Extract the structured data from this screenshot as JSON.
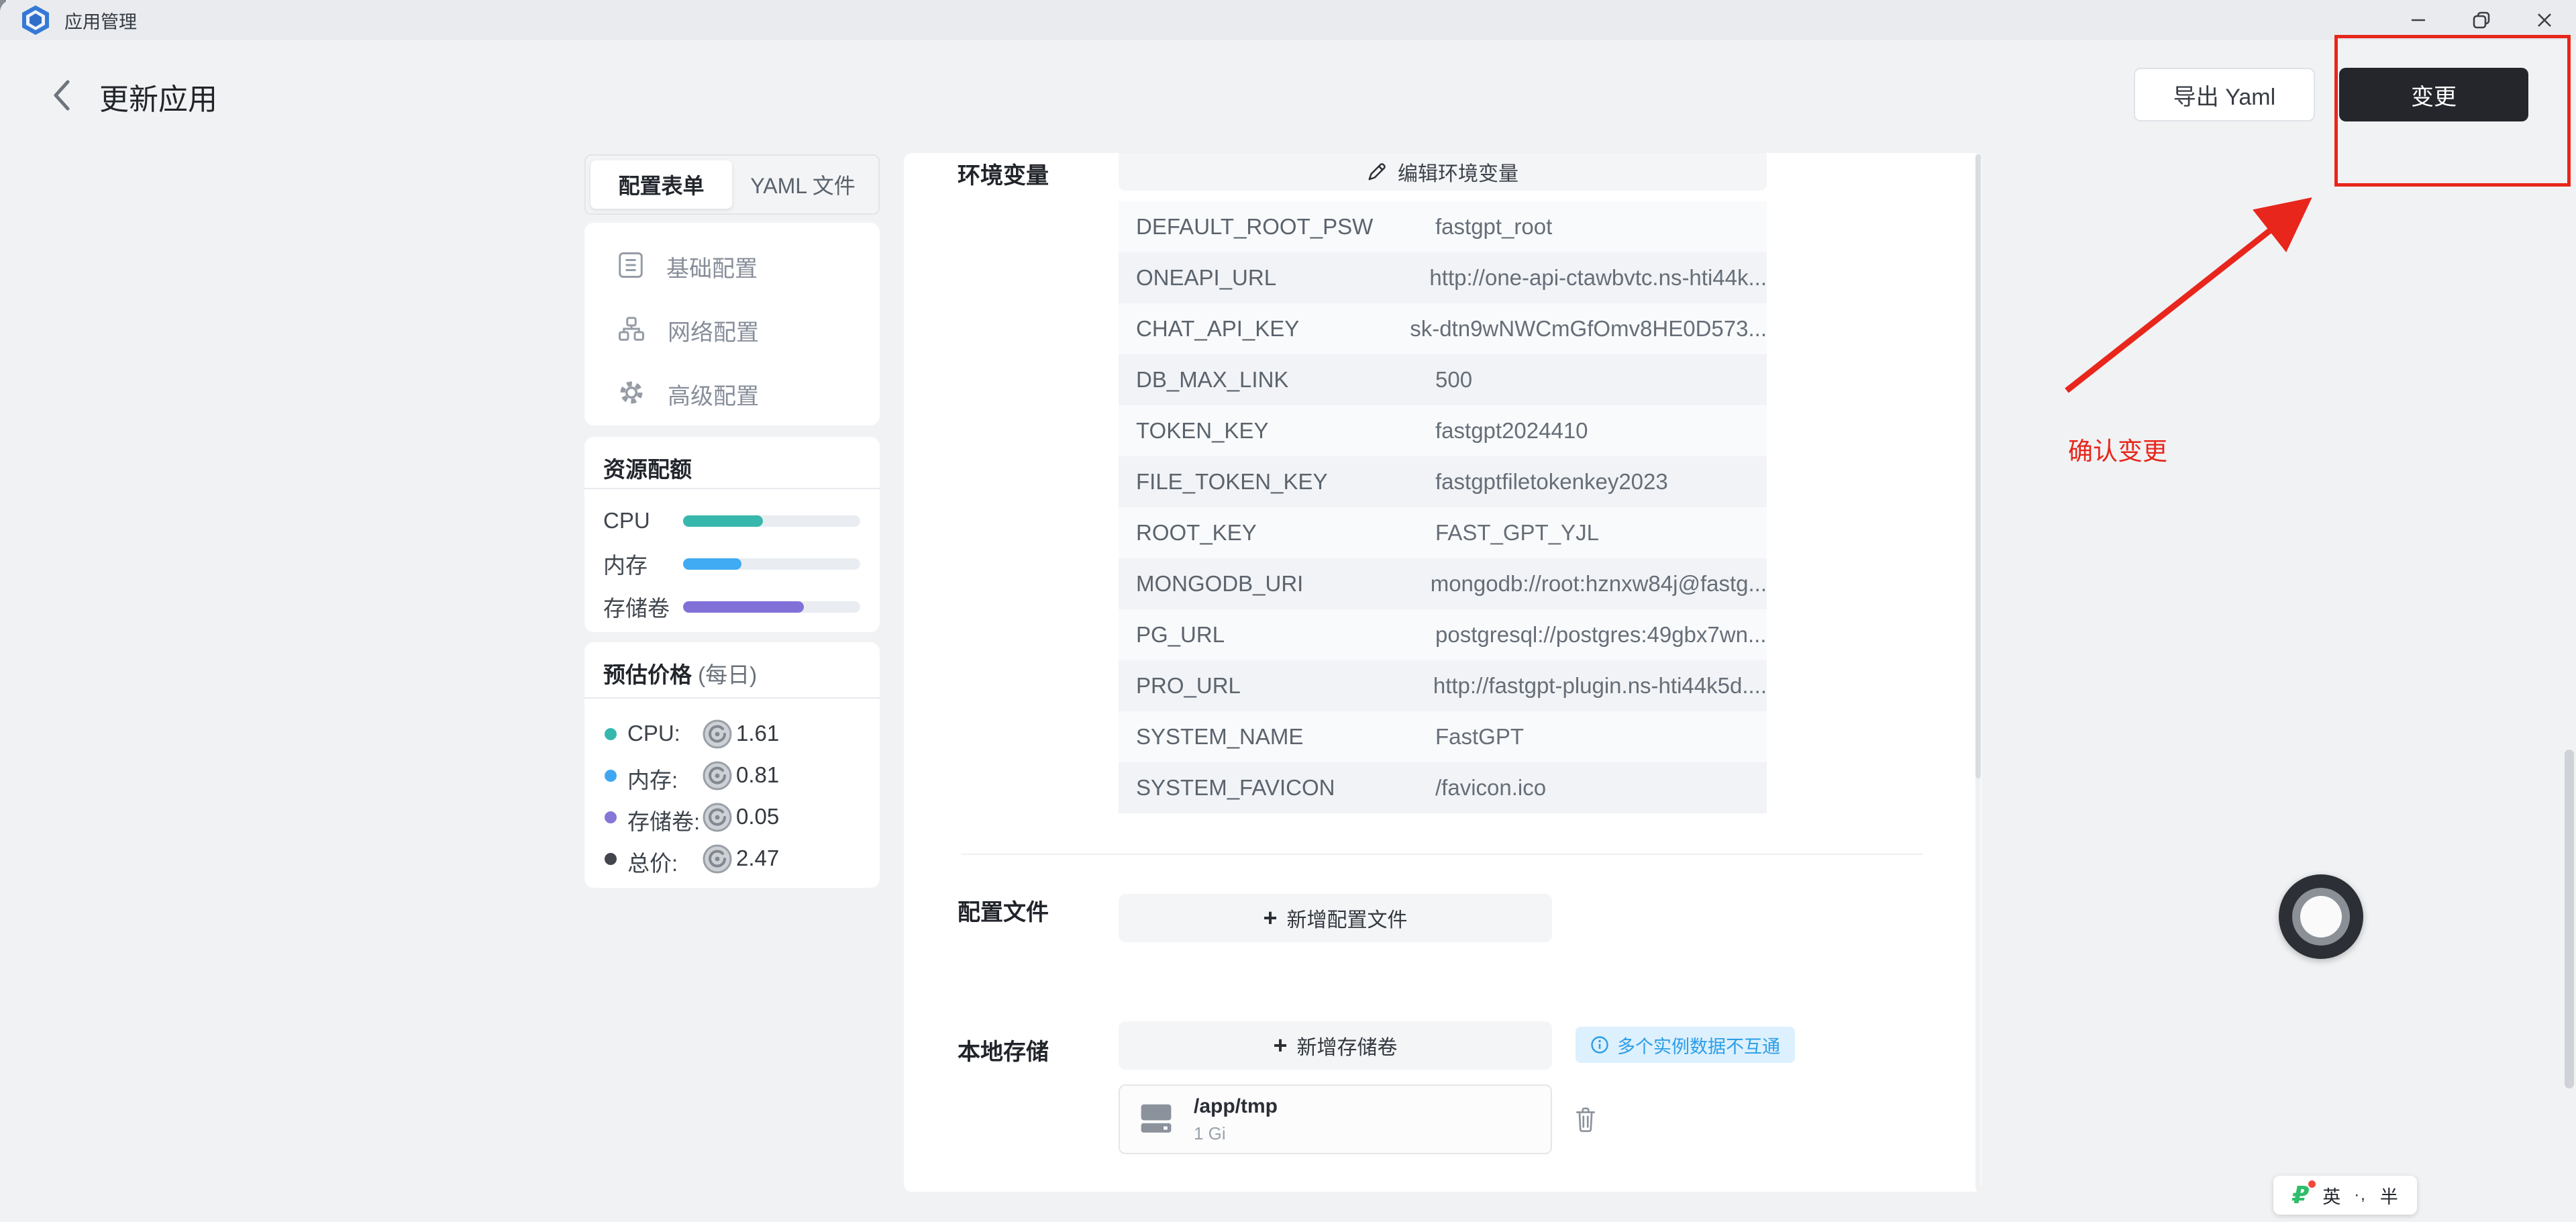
{
  "window": {
    "title": "应用管理"
  },
  "header": {
    "title": "更新应用",
    "export_button": "导出 Yaml",
    "apply_button": "变更"
  },
  "annotation": {
    "label": "确认变更",
    "color": "#e8261b"
  },
  "icons": {
    "plus": "+"
  },
  "sidebar": {
    "tabs": [
      {
        "label": "配置表单",
        "active": true
      },
      {
        "label": "YAML 文件",
        "active": false
      }
    ],
    "menu": [
      {
        "label": "基础配置",
        "icon": "form-icon"
      },
      {
        "label": "网络配置",
        "icon": "network-icon"
      },
      {
        "label": "高级配置",
        "icon": "gear-icon"
      }
    ],
    "quota": {
      "title": "资源配额",
      "rows": [
        {
          "label": "CPU",
          "percent": 45,
          "color": "#38b7ac"
        },
        {
          "label": "内存",
          "percent": 33,
          "color": "#40aaf2"
        },
        {
          "label": "存储卷",
          "percent": 68,
          "color": "#8170d8"
        }
      ]
    },
    "price": {
      "title": "预估价格",
      "subtitle": "(每日)",
      "rows": [
        {
          "label": "CPU:",
          "value": "1.61",
          "dot": "#36b7ad"
        },
        {
          "label": "内存:",
          "value": "0.81",
          "dot": "#3fa7f0"
        },
        {
          "label": "存储卷:",
          "value": "0.05",
          "dot": "#8577d8"
        },
        {
          "label": "总价:",
          "value": "2.47",
          "dot": "#42464c"
        }
      ]
    }
  },
  "main": {
    "env": {
      "label": "环境变量",
      "edit_button": "编辑环境变量",
      "rows": [
        {
          "key": "DEFAULT_ROOT_PSW",
          "value": "fastgpt_root"
        },
        {
          "key": "ONEAPI_URL",
          "value": "http://one-api-ctawbvtc.ns-hti44k..."
        },
        {
          "key": "CHAT_API_KEY",
          "value": "sk-dtn9wNWCmGfOmv8HE0D573..."
        },
        {
          "key": "DB_MAX_LINK",
          "value": "500"
        },
        {
          "key": "TOKEN_KEY",
          "value": "fastgpt2024410"
        },
        {
          "key": "FILE_TOKEN_KEY",
          "value": "fastgptfiletokenkey2023"
        },
        {
          "key": "ROOT_KEY",
          "value": "FAST_GPT_YJL"
        },
        {
          "key": "MONGODB_URI",
          "value": "mongodb://root:hznxw84j@fastg..."
        },
        {
          "key": "PG_URL",
          "value": "postgresql://postgres:49gbx7wn..."
        },
        {
          "key": "PRO_URL",
          "value": "http://fastgpt-plugin.ns-hti44k5d...."
        },
        {
          "key": "SYSTEM_NAME",
          "value": "FastGPT"
        },
        {
          "key": "SYSTEM_FAVICON",
          "value": "/favicon.ico"
        }
      ]
    },
    "config_files": {
      "label": "配置文件",
      "add_button": "新增配置文件"
    },
    "storage": {
      "label": "本地存储",
      "add_button": "新增存储卷",
      "hint": "多个实例数据不互通",
      "volumes": [
        {
          "path": "/app/tmp",
          "size": "1 Gi"
        }
      ]
    }
  },
  "ime": {
    "lang": "英",
    "punct": "·,",
    "width": "半"
  }
}
